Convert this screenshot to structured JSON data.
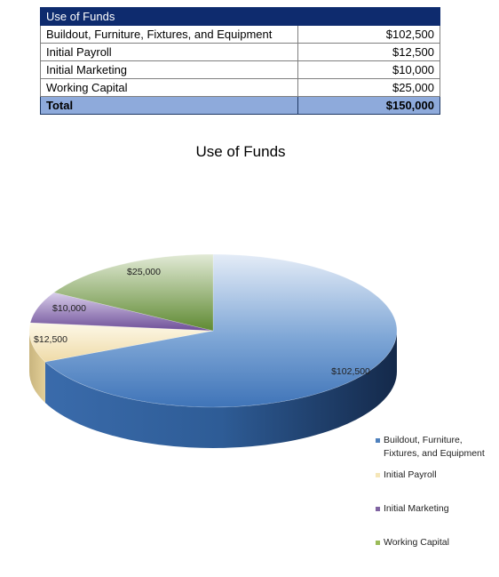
{
  "table": {
    "header": "Use of Funds",
    "rows": [
      {
        "label": "Buildout, Furniture, Fixtures, and Equipment",
        "amount": "$102,500"
      },
      {
        "label": "Initial Payroll",
        "amount": "$12,500"
      },
      {
        "label": "Initial Marketing",
        "amount": "$10,000"
      },
      {
        "label": "Working Capital",
        "amount": "$25,000"
      }
    ],
    "total_label": "Total",
    "total_amount": "$150,000"
  },
  "chart_data": {
    "type": "pie",
    "style": "3d",
    "title": "Use of Funds",
    "legend_position": "right",
    "slices": [
      {
        "name": "Buildout, Furniture, Fixtures, and Equipment",
        "value": 102500,
        "label": "$102,500",
        "color": "#4f81bd"
      },
      {
        "name": "Initial Payroll",
        "value": 12500,
        "label": "$12,500",
        "color": "#f5e6b8"
      },
      {
        "name": "Initial Marketing",
        "value": 10000,
        "label": "$10,000",
        "color": "#8064a2"
      },
      {
        "name": "Working Capital",
        "value": 25000,
        "label": "$25,000",
        "color": "#77933c"
      }
    ]
  }
}
